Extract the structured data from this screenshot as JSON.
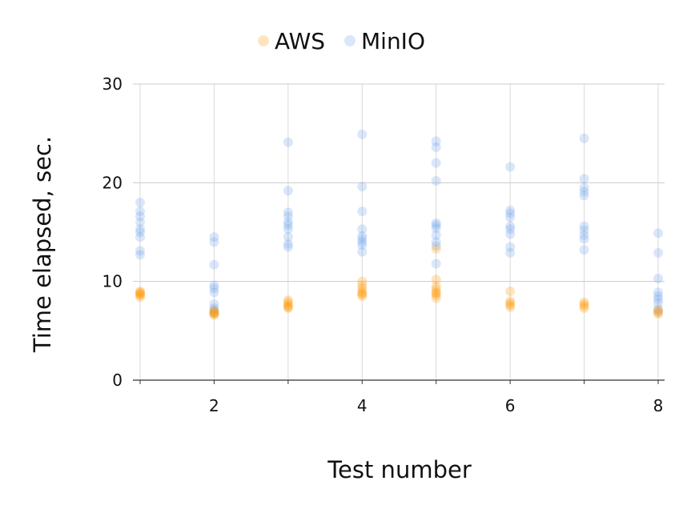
{
  "chart_data": {
    "type": "scatter",
    "title": "",
    "xlabel": "Test number",
    "ylabel": "Time elapsed, sec.",
    "xlim": [
      1,
      8
    ],
    "ylim": [
      0,
      30
    ],
    "x_ticks": [
      2,
      4,
      6,
      8
    ],
    "y_ticks": [
      0,
      10,
      20,
      30
    ],
    "grid": true,
    "legend_position": "top-center",
    "series": [
      {
        "name": "AWS",
        "color": "#ff9900",
        "points": [
          [
            1,
            8.4
          ],
          [
            1,
            8.7
          ],
          [
            1,
            8.9
          ],
          [
            1,
            9.0
          ],
          [
            1,
            8.6
          ],
          [
            1,
            8.8
          ],
          [
            2,
            6.6
          ],
          [
            2,
            6.8
          ],
          [
            2,
            6.9
          ],
          [
            2,
            7.0
          ],
          [
            2,
            6.7
          ],
          [
            3,
            7.3
          ],
          [
            3,
            7.5
          ],
          [
            3,
            7.7
          ],
          [
            3,
            7.9
          ],
          [
            3,
            8.1
          ],
          [
            3,
            7.4
          ],
          [
            4,
            8.5
          ],
          [
            4,
            8.8
          ],
          [
            4,
            9.0
          ],
          [
            4,
            9.3
          ],
          [
            4,
            9.6
          ],
          [
            4,
            10.0
          ],
          [
            4,
            8.7
          ],
          [
            5,
            8.3
          ],
          [
            5,
            8.6
          ],
          [
            5,
            8.9
          ],
          [
            5,
            9.2
          ],
          [
            5,
            9.5
          ],
          [
            5,
            10.2
          ],
          [
            5,
            13.3
          ],
          [
            5,
            8.8
          ],
          [
            6,
            7.4
          ],
          [
            6,
            7.6
          ],
          [
            6,
            7.8
          ],
          [
            6,
            8.0
          ],
          [
            6,
            9.0
          ],
          [
            7,
            7.3
          ],
          [
            7,
            7.5
          ],
          [
            7,
            7.7
          ],
          [
            7,
            7.9
          ],
          [
            8,
            6.7
          ],
          [
            8,
            6.9
          ],
          [
            8,
            7.1
          ]
        ]
      },
      {
        "name": "MinIO",
        "color": "#6d9eeb",
        "points": [
          [
            1,
            12.7
          ],
          [
            1,
            13.1
          ],
          [
            1,
            14.5
          ],
          [
            1,
            15.0
          ],
          [
            1,
            15.3
          ],
          [
            1,
            16.0
          ],
          [
            1,
            16.6
          ],
          [
            1,
            17.1
          ],
          [
            1,
            18.0
          ],
          [
            2,
            6.8
          ],
          [
            2,
            7.1
          ],
          [
            2,
            7.3
          ],
          [
            2,
            7.7
          ],
          [
            2,
            8.9
          ],
          [
            2,
            9.3
          ],
          [
            2,
            9.6
          ],
          [
            2,
            11.7
          ],
          [
            2,
            14.0
          ],
          [
            2,
            14.5
          ],
          [
            3,
            13.5
          ],
          [
            3,
            13.8
          ],
          [
            3,
            14.5
          ],
          [
            3,
            15.3
          ],
          [
            3,
            15.7
          ],
          [
            3,
            16.0
          ],
          [
            3,
            16.6
          ],
          [
            3,
            17.0
          ],
          [
            3,
            19.2
          ],
          [
            3,
            24.1
          ],
          [
            4,
            13.0
          ],
          [
            4,
            13.7
          ],
          [
            4,
            14.0
          ],
          [
            4,
            14.3
          ],
          [
            4,
            14.6
          ],
          [
            4,
            15.3
          ],
          [
            4,
            17.1
          ],
          [
            4,
            19.6
          ],
          [
            4,
            24.9
          ],
          [
            5,
            11.8
          ],
          [
            5,
            13.6
          ],
          [
            5,
            14.0
          ],
          [
            5,
            14.7
          ],
          [
            5,
            15.4
          ],
          [
            5,
            15.7
          ],
          [
            5,
            15.9
          ],
          [
            5,
            20.2
          ],
          [
            5,
            22.0
          ],
          [
            5,
            23.6
          ],
          [
            5,
            24.2
          ],
          [
            6,
            12.9
          ],
          [
            6,
            13.5
          ],
          [
            6,
            14.8
          ],
          [
            6,
            15.3
          ],
          [
            6,
            15.6
          ],
          [
            6,
            16.5
          ],
          [
            6,
            16.9
          ],
          [
            6,
            17.2
          ],
          [
            6,
            21.6
          ],
          [
            7,
            13.2
          ],
          [
            7,
            14.3
          ],
          [
            7,
            14.7
          ],
          [
            7,
            15.2
          ],
          [
            7,
            15.6
          ],
          [
            7,
            18.7
          ],
          [
            7,
            19.1
          ],
          [
            7,
            19.5
          ],
          [
            7,
            20.4
          ],
          [
            7,
            24.5
          ],
          [
            8,
            6.9
          ],
          [
            8,
            7.2
          ],
          [
            8,
            7.8
          ],
          [
            8,
            8.2
          ],
          [
            8,
            8.5
          ],
          [
            8,
            8.9
          ],
          [
            8,
            10.3
          ],
          [
            8,
            12.9
          ],
          [
            8,
            14.9
          ]
        ]
      }
    ]
  }
}
